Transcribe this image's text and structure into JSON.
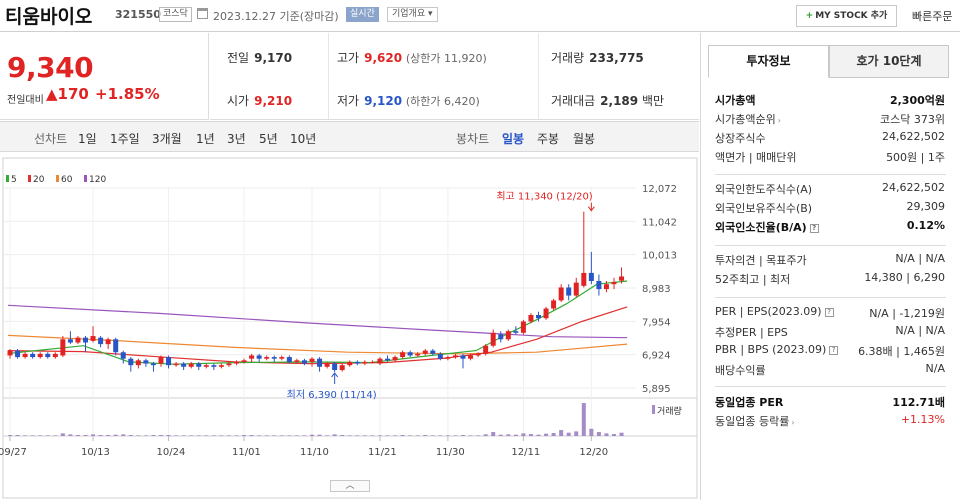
{
  "header": {
    "company_name": "티움바이오",
    "code": "321550",
    "market": "코스닥",
    "date_text": "2023.12.27 기준(장마감)",
    "realtime_label": "실시간",
    "overview_label": "기업개요",
    "overview_arrow": "▾",
    "mystock_plus": "+",
    "mystock_label": "MY STOCK 추가",
    "quick_order_label": "빠른주문"
  },
  "price": {
    "current": "9,340",
    "change_label": "전일대비",
    "change": "▲170",
    "change_pct": "+1.85%"
  },
  "quote": {
    "prev_label": "전일",
    "prev": "9,170",
    "high_label": "고가",
    "high": "9,620",
    "upper_limit": "(상한가 11,920)",
    "volume_label": "거래량",
    "volume": "233,775",
    "open_label": "시가",
    "open": "9,210",
    "low_label": "저가",
    "low": "9,120",
    "lower_limit": "(하한가 6,420)",
    "amount_label": "거래대금",
    "amount": "2,189",
    "amount_unit": "백만"
  },
  "period_tabs": {
    "line_label": "선차트",
    "items": [
      "1일",
      "1주일",
      "3개월",
      "1년",
      "3년",
      "5년",
      "10년"
    ],
    "candle_label": "봉차트",
    "candle_items": [
      "일봉",
      "주봉",
      "월봉"
    ],
    "active_candle": "일봉"
  },
  "colors": {
    "up": "#e02424",
    "down": "#2856c8",
    "ma5": "#33aa33",
    "ma20": "#e03030",
    "ma60": "#ee8833",
    "ma120": "#9955bb",
    "volume": "#a58cc8"
  },
  "chart_data": {
    "type": "candlestick",
    "legend": [
      "5",
      "20",
      "60",
      "120"
    ],
    "y_ticks": [
      12072,
      11042,
      10013,
      8983,
      7954,
      6924,
      5895
    ],
    "y_tick_labels": [
      "12,072",
      "11,042",
      "10,013",
      "8,983",
      "7,954",
      "6,924",
      "5,895"
    ],
    "ylim": [
      5895,
      12072
    ],
    "x_tick_labels": [
      "09/27",
      "10/13",
      "10/24",
      "11/01",
      "11/10",
      "11/21",
      "11/30",
      "12/11",
      "12/20"
    ],
    "x_tick_index": [
      0,
      11,
      21,
      31,
      40,
      49,
      58,
      68,
      77
    ],
    "high_annotation": "최고 11,340 (12/20)",
    "low_annotation": "최저 6,390 (11/14)",
    "high_point": {
      "index": 77,
      "value": 11340
    },
    "low_point": {
      "index": 43,
      "value": 6390
    },
    "volume_label": "거래량",
    "candles": [
      {
        "o": 6900,
        "c": 7050,
        "h": 7100,
        "l": 6800
      },
      {
        "o": 7050,
        "c": 6850,
        "h": 7100,
        "l": 6800
      },
      {
        "o": 6850,
        "c": 6950,
        "h": 7000,
        "l": 6800
      },
      {
        "o": 6950,
        "c": 6850,
        "h": 7000,
        "l": 6800
      },
      {
        "o": 6850,
        "c": 6950,
        "h": 7000,
        "l": 6800
      },
      {
        "o": 6950,
        "c": 6850,
        "h": 7000,
        "l": 6800
      },
      {
        "o": 6850,
        "c": 6950,
        "h": 7000,
        "l": 6800
      },
      {
        "o": 6900,
        "c": 7400,
        "h": 7500,
        "l": 6850
      },
      {
        "o": 7400,
        "c": 7300,
        "h": 7650,
        "l": 7250
      },
      {
        "o": 7300,
        "c": 7450,
        "h": 7500,
        "l": 7250
      },
      {
        "o": 7450,
        "c": 7300,
        "h": 7500,
        "l": 7000
      },
      {
        "o": 7350,
        "c": 7500,
        "h": 7800,
        "l": 7300
      },
      {
        "o": 7450,
        "c": 7250,
        "h": 7500,
        "l": 7150
      },
      {
        "o": 7250,
        "c": 7400,
        "h": 7450,
        "l": 7100
      },
      {
        "o": 7400,
        "c": 7000,
        "h": 7450,
        "l": 6900
      },
      {
        "o": 7000,
        "c": 6800,
        "h": 7050,
        "l": 6650
      },
      {
        "o": 6800,
        "c": 6600,
        "h": 6850,
        "l": 6400
      },
      {
        "o": 6600,
        "c": 6750,
        "h": 6800,
        "l": 6500
      },
      {
        "o": 6750,
        "c": 6650,
        "h": 6800,
        "l": 6550
      },
      {
        "o": 6650,
        "c": 6600,
        "h": 6700,
        "l": 6400
      },
      {
        "o": 6650,
        "c": 6850,
        "h": 6900,
        "l": 6550
      },
      {
        "o": 6850,
        "c": 6600,
        "h": 6900,
        "l": 6500
      },
      {
        "o": 6600,
        "c": 6650,
        "h": 6700,
        "l": 6550
      },
      {
        "o": 6650,
        "c": 6550,
        "h": 6700,
        "l": 6450
      },
      {
        "o": 6550,
        "c": 6650,
        "h": 6700,
        "l": 6500
      },
      {
        "o": 6650,
        "c": 6550,
        "h": 6700,
        "l": 6450
      },
      {
        "o": 6550,
        "c": 6600,
        "h": 6650,
        "l": 6500
      },
      {
        "o": 6600,
        "c": 6550,
        "h": 6650,
        "l": 6450
      },
      {
        "o": 6550,
        "c": 6600,
        "h": 6650,
        "l": 6500
      },
      {
        "o": 6600,
        "c": 6650,
        "h": 6700,
        "l": 6550
      },
      {
        "o": 6650,
        "c": 6700,
        "h": 6750,
        "l": 6600
      },
      {
        "o": 6700,
        "c": 6750,
        "h": 6800,
        "l": 6650
      },
      {
        "o": 6800,
        "c": 6900,
        "h": 6950,
        "l": 6700
      },
      {
        "o": 6900,
        "c": 6800,
        "h": 6950,
        "l": 6700
      },
      {
        "o": 6800,
        "c": 6850,
        "h": 6900,
        "l": 6750
      },
      {
        "o": 6850,
        "c": 6800,
        "h": 6900,
        "l": 6700
      },
      {
        "o": 6800,
        "c": 6850,
        "h": 6900,
        "l": 6750
      },
      {
        "o": 6850,
        "c": 6700,
        "h": 6900,
        "l": 6650
      },
      {
        "o": 6700,
        "c": 6750,
        "h": 6800,
        "l": 6650
      },
      {
        "o": 6750,
        "c": 6650,
        "h": 6800,
        "l": 6600
      },
      {
        "o": 6700,
        "c": 6800,
        "h": 6850,
        "l": 6550
      },
      {
        "o": 6800,
        "c": 6550,
        "h": 6850,
        "l": 6400
      },
      {
        "o": 6550,
        "c": 6650,
        "h": 6700,
        "l": 6500
      },
      {
        "o": 6650,
        "c": 6450,
        "h": 6700,
        "l": 6390
      },
      {
        "o": 6450,
        "c": 6600,
        "h": 6650,
        "l": 6400
      },
      {
        "o": 6600,
        "c": 6700,
        "h": 6750,
        "l": 6550
      },
      {
        "o": 6700,
        "c": 6650,
        "h": 6750,
        "l": 6600
      },
      {
        "o": 6650,
        "c": 6700,
        "h": 6750,
        "l": 6600
      },
      {
        "o": 6700,
        "c": 6700,
        "h": 6750,
        "l": 6650
      },
      {
        "o": 6650,
        "c": 6800,
        "h": 6850,
        "l": 6600
      },
      {
        "o": 6800,
        "c": 6750,
        "h": 6900,
        "l": 6700
      },
      {
        "o": 6750,
        "c": 6850,
        "h": 6900,
        "l": 6700
      },
      {
        "o": 6850,
        "c": 7000,
        "h": 7050,
        "l": 6800
      },
      {
        "o": 7000,
        "c": 6900,
        "h": 7050,
        "l": 6850
      },
      {
        "o": 6900,
        "c": 6950,
        "h": 7000,
        "l": 6850
      },
      {
        "o": 6950,
        "c": 7050,
        "h": 7100,
        "l": 6900
      },
      {
        "o": 7050,
        "c": 6950,
        "h": 7100,
        "l": 6900
      },
      {
        "o": 6950,
        "c": 6800,
        "h": 7000,
        "l": 6750
      },
      {
        "o": 6800,
        "c": 6850,
        "h": 6900,
        "l": 6750
      },
      {
        "o": 6850,
        "c": 6900,
        "h": 6950,
        "l": 6800
      },
      {
        "o": 6900,
        "c": 6800,
        "h": 6950,
        "l": 6500
      },
      {
        "o": 6800,
        "c": 6900,
        "h": 6950,
        "l": 6750
      },
      {
        "o": 6900,
        "c": 6950,
        "h": 7000,
        "l": 6850
      },
      {
        "o": 6950,
        "c": 7200,
        "h": 7250,
        "l": 6900
      },
      {
        "o": 7200,
        "c": 7600,
        "h": 7700,
        "l": 7150
      },
      {
        "o": 7550,
        "c": 7400,
        "h": 7650,
        "l": 7300
      },
      {
        "o": 7400,
        "c": 7650,
        "h": 7700,
        "l": 7350
      },
      {
        "o": 7650,
        "c": 7600,
        "h": 7800,
        "l": 7550
      },
      {
        "o": 7600,
        "c": 7950,
        "h": 8000,
        "l": 7550
      },
      {
        "o": 7950,
        "c": 8150,
        "h": 8200,
        "l": 7900
      },
      {
        "o": 8150,
        "c": 8050,
        "h": 8250,
        "l": 7950
      },
      {
        "o": 8050,
        "c": 8350,
        "h": 8400,
        "l": 8000
      },
      {
        "o": 8350,
        "c": 8600,
        "h": 8650,
        "l": 8300
      },
      {
        "o": 8600,
        "c": 9000,
        "h": 9100,
        "l": 8550
      },
      {
        "o": 9000,
        "c": 8750,
        "h": 9100,
        "l": 8600
      },
      {
        "o": 8750,
        "c": 9150,
        "h": 9300,
        "l": 8700
      },
      {
        "o": 9050,
        "c": 9450,
        "h": 11340,
        "l": 9000
      },
      {
        "o": 9450,
        "c": 9200,
        "h": 10100,
        "l": 9100
      },
      {
        "o": 9200,
        "c": 8950,
        "h": 9400,
        "l": 8750
      },
      {
        "o": 8950,
        "c": 9100,
        "h": 9200,
        "l": 8850
      },
      {
        "o": 9100,
        "c": 9170,
        "h": 9300,
        "l": 8950
      },
      {
        "o": 9210,
        "c": 9340,
        "h": 9620,
        "l": 9120
      }
    ],
    "ma5": [
      [
        0,
        6960
      ],
      [
        10,
        7200
      ],
      [
        16,
        6700
      ],
      [
        22,
        6630
      ],
      [
        30,
        6680
      ],
      [
        40,
        6700
      ],
      [
        48,
        6680
      ],
      [
        56,
        6900
      ],
      [
        62,
        7050
      ],
      [
        66,
        7550
      ],
      [
        70,
        8000
      ],
      [
        74,
        8500
      ],
      [
        78,
        9100
      ],
      [
        82,
        9200
      ]
    ],
    "ma20": [
      [
        0,
        7050
      ],
      [
        10,
        7020
      ],
      [
        20,
        6860
      ],
      [
        30,
        6700
      ],
      [
        40,
        6650
      ],
      [
        50,
        6680
      ],
      [
        58,
        6820
      ],
      [
        64,
        7000
      ],
      [
        70,
        7400
      ],
      [
        76,
        7950
      ],
      [
        82,
        8400
      ]
    ],
    "ma60": [
      [
        0,
        7520
      ],
      [
        15,
        7350
      ],
      [
        30,
        7150
      ],
      [
        45,
        7000
      ],
      [
        60,
        6950
      ],
      [
        70,
        7000
      ],
      [
        82,
        7250
      ]
    ],
    "ma120": [
      [
        0,
        8450
      ],
      [
        20,
        8200
      ],
      [
        40,
        7900
      ],
      [
        55,
        7700
      ],
      [
        64,
        7580
      ],
      [
        72,
        7480
      ],
      [
        82,
        7450
      ]
    ],
    "volumes": [
      0.03,
      0.03,
      0.02,
      0.02,
      0.02,
      0.02,
      0.02,
      0.08,
      0.05,
      0.03,
      0.03,
      0.05,
      0.03,
      0.03,
      0.04,
      0.05,
      0.03,
      0.02,
      0.02,
      0.03,
      0.03,
      0.03,
      0.02,
      0.02,
      0.02,
      0.02,
      0.02,
      0.02,
      0.02,
      0.02,
      0.02,
      0.03,
      0.03,
      0.02,
      0.02,
      0.02,
      0.02,
      0.02,
      0.02,
      0.02,
      0.04,
      0.04,
      0.02,
      0.05,
      0.03,
      0.02,
      0.02,
      0.02,
      0.02,
      0.02,
      0.02,
      0.02,
      0.03,
      0.02,
      0.02,
      0.03,
      0.02,
      0.02,
      0.02,
      0.02,
      0.03,
      0.02,
      0.02,
      0.05,
      0.12,
      0.04,
      0.05,
      0.04,
      0.08,
      0.06,
      0.04,
      0.07,
      0.09,
      0.18,
      0.1,
      0.14,
      1.0,
      0.22,
      0.12,
      0.08,
      0.06,
      0.1
    ]
  },
  "invest_panel": {
    "tab_active": "투자정보",
    "tab_other": "호가 10단계",
    "rows": [
      {
        "k": "시가총액",
        "v": "2,300억원",
        "bold": true
      },
      {
        "k": "시가총액순위",
        "v": "코스닥 373위"
      },
      {
        "k": "상장주식수",
        "v": "24,622,502"
      },
      {
        "k": "액면가 | 매매단위",
        "v": "500원 | 1주"
      },
      {
        "k": "외국인한도주식수(A)",
        "v": "24,622,502"
      },
      {
        "k": "외국인보유주식수(B)",
        "v": "29,309"
      },
      {
        "k": "외국인소진율(B/A)",
        "v": "0.12%",
        "bold": true
      },
      {
        "k": "투자의견 | 목표주가",
        "v": "N/A | N/A"
      },
      {
        "k": "52주최고 | 최저",
        "v": "14,380 | 6,290"
      },
      {
        "k": "PER | EPS(2023.09)",
        "v": "N/A | -1,219원"
      },
      {
        "k": "추정PER | EPS",
        "v": "N/A | N/A"
      },
      {
        "k": "PBR | BPS (2023.09)",
        "v": "6.38배 | 1,465원"
      },
      {
        "k": "배당수익률",
        "v": "N/A"
      },
      {
        "k": "동일업종 PER",
        "v": "112.71배",
        "bold": true
      },
      {
        "k": "동일업종 등락률",
        "v": "+1.13%"
      }
    ]
  },
  "collapse_label": "︿"
}
